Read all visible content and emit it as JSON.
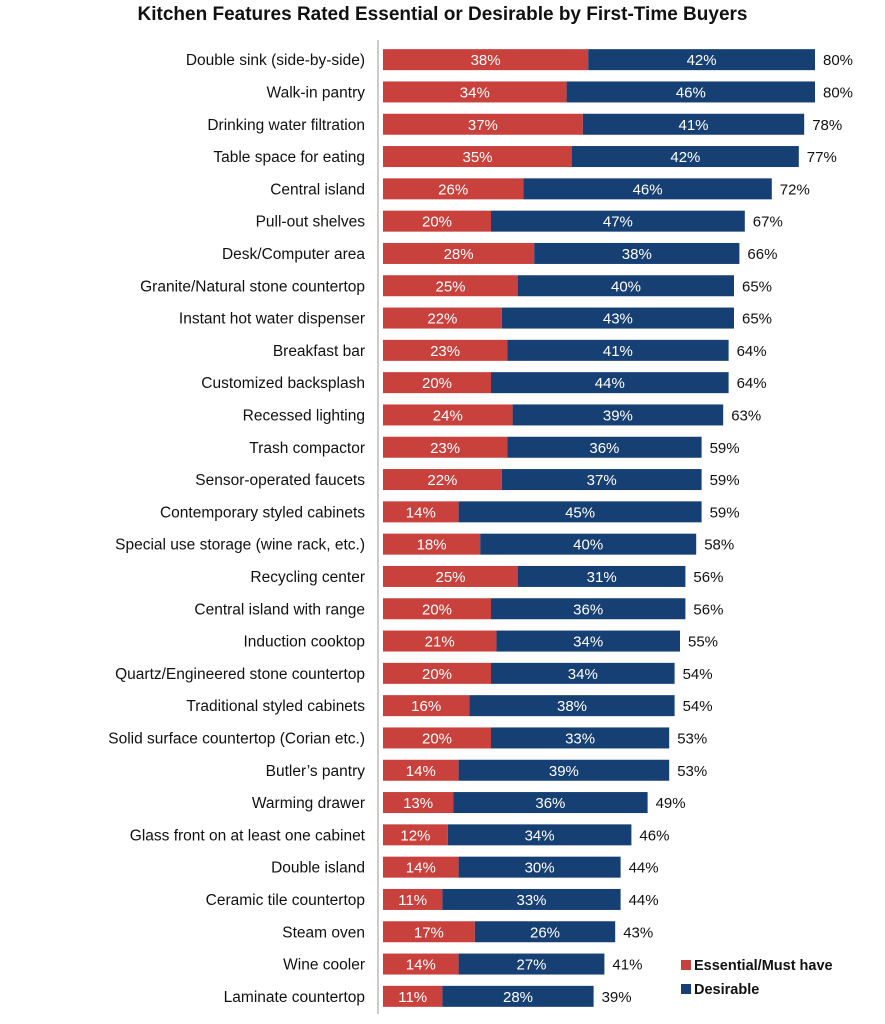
{
  "chart_data": {
    "type": "bar",
    "stacked": true,
    "orientation": "horizontal",
    "title": "Kitchen Features Rated Essential or Desirable by First-Time Buyers",
    "categories": [
      "Double sink (side-by-side)",
      "Walk-in pantry",
      "Drinking water filtration",
      "Table space for eating",
      "Central island",
      "Pull-out shelves",
      "Desk/Computer area",
      "Granite/Natural stone countertop",
      "Instant hot water dispenser",
      "Breakfast bar",
      "Customized backsplash",
      "Recessed lighting",
      "Trash compactor",
      "Sensor-operated faucets",
      "Contemporary styled cabinets",
      "Special use storage (wine rack, etc.)",
      "Recycling center",
      "Central island with range",
      "Induction cooktop",
      "Quartz/Engineered stone  countertop",
      "Traditional styled cabinets",
      "Solid surface countertop (Corian etc.)",
      "Butler’s pantry",
      "Warming drawer",
      "Glass front on at least one  cabinet",
      "Double island",
      "Ceramic tile countertop",
      "Steam oven",
      "Wine cooler",
      "Laminate countertop"
    ],
    "series": [
      {
        "name": "Essential/Must have",
        "color": "#c8413c",
        "values": [
          38,
          34,
          37,
          35,
          26,
          20,
          28,
          25,
          22,
          23,
          20,
          24,
          23,
          22,
          14,
          18,
          25,
          20,
          21,
          20,
          16,
          20,
          14,
          13,
          12,
          14,
          11,
          17,
          14,
          11
        ]
      },
      {
        "name": "Desirable",
        "color": "#163f73",
        "values": [
          42,
          46,
          41,
          42,
          46,
          47,
          38,
          40,
          43,
          41,
          44,
          39,
          36,
          37,
          45,
          40,
          31,
          36,
          34,
          34,
          38,
          33,
          39,
          36,
          34,
          30,
          33,
          26,
          27,
          28
        ]
      }
    ],
    "totals": [
      80,
      80,
      78,
      77,
      72,
      67,
      66,
      65,
      65,
      64,
      64,
      63,
      59,
      59,
      59,
      58,
      56,
      56,
      55,
      54,
      54,
      53,
      53,
      49,
      46,
      44,
      44,
      43,
      41,
      39
    ],
    "value_suffix": "%",
    "legend_position": "bottom-right",
    "grid": false
  }
}
